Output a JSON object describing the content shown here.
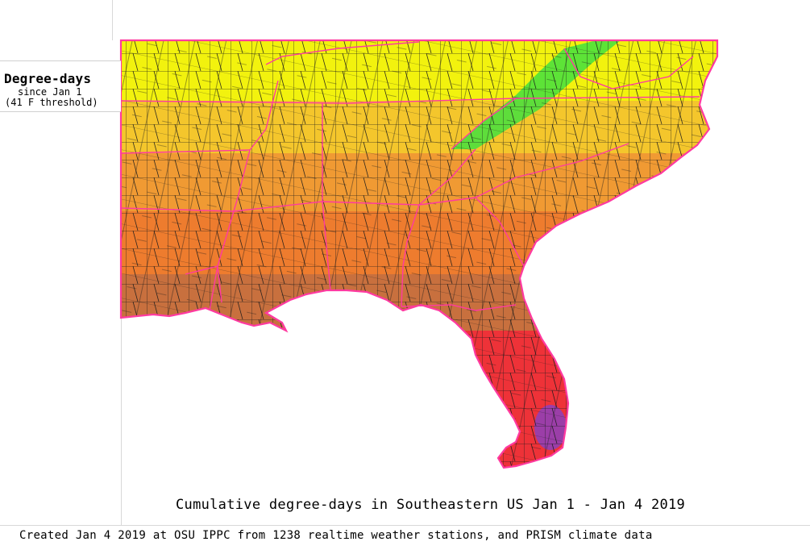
{
  "legend": {
    "title": "Degree-days",
    "subtitle": "since Jan 1",
    "threshold": "(41 F threshold)"
  },
  "map": {
    "title": "Cumulative degree-days in Southeastern US Jan 1 - Jan 4 2019",
    "credit": "Created Jan 4 2019 at OSU IPPC from 1238 realtime weather stations, and PRISM climate data",
    "region": "Southeastern US",
    "colors": {
      "lowest": "#f2f20e",
      "low": "#f4c62c",
      "mid": "#f09a33",
      "high": "#ee7c2e",
      "higher": "#c8703e",
      "highest": "#ee3238",
      "peak": "#9b3ea8",
      "cool_ridge": "#43e03e",
      "state_borders": "#ff3aa0",
      "county_borders": "#1a1a1a"
    }
  }
}
